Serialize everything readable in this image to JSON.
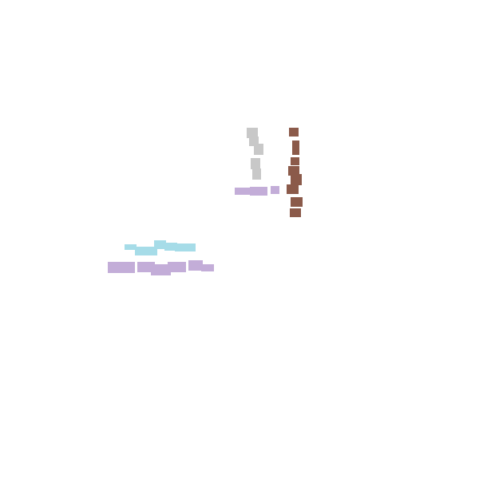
{
  "canvas": {
    "background": "#ffffff"
  },
  "palette": {
    "gray": "#c8c8c8",
    "brown": "#8b5a4a",
    "lavender": "#c3add8",
    "light_blue": "#a6dce8"
  },
  "strokes": [
    {
      "name": "gray-vertical-stroke",
      "color_key": "gray"
    },
    {
      "name": "brown-vertical-stroke",
      "color_key": "brown"
    },
    {
      "name": "lavender-short-horizontal-stroke",
      "color_key": "lavender"
    },
    {
      "name": "light-blue-horizontal-stroke",
      "color_key": "light_blue"
    },
    {
      "name": "lavender-long-horizontal-stroke",
      "color_key": "lavender"
    }
  ]
}
